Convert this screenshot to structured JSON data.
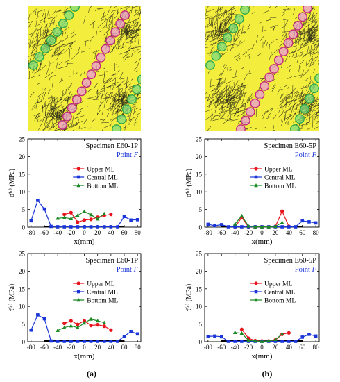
{
  "panel_labels": [
    "(a)",
    "(b)"
  ],
  "specimen_images": [
    {
      "columns": [
        {
          "ring_color": "#2ea84a",
          "fill_color": "#7fdc7f"
        },
        {
          "ring_color": "#c0287c",
          "fill_color": "#e89ad6"
        },
        {
          "ring_color": "#2ea84a",
          "fill_color": "#7fdc7f"
        }
      ]
    },
    {
      "columns": [
        {
          "ring_color": "#2ea84a",
          "fill_color": "#7fdc7f"
        },
        {
          "ring_color": "#c0287c",
          "fill_color": "#e89ad6"
        },
        {
          "ring_color": "#2ea84a",
          "fill_color": "#7fdc7f"
        }
      ]
    }
  ],
  "colors": {
    "background_yellow": "#f3ee3e",
    "crack_black": "#141414",
    "upper": "#e8141c",
    "central": "#1a36d8",
    "bottom": "#1b8a24",
    "point_label": "#1a36d8"
  },
  "chart_data": [
    {
      "type": "line",
      "specimen": "Specimen E60-1P",
      "point_prefix": "Point ",
      "point_letter": "F",
      "ylabel": "σ̄⁽ᶜ⁾ (MPa)",
      "xlabel": "x(mm)",
      "xlim": [
        -85,
        85
      ],
      "ylim": [
        0,
        25
      ],
      "xticks": [
        -80,
        -60,
        -40,
        -20,
        0,
        20,
        40,
        60,
        80
      ],
      "yticks": [
        0,
        5,
        10,
        15,
        20,
        25
      ],
      "legend_position": "center",
      "series": [
        {
          "name": "Upper ML",
          "color": "#e8141c",
          "marker": "circle",
          "x": [
            -30,
            -20,
            -10,
            0,
            10,
            20,
            30,
            40
          ],
          "y": [
            3.6,
            4.1,
            1.4,
            2.0,
            2.2,
            2.8,
            3.3,
            3.6
          ]
        },
        {
          "name": "Central ML",
          "color": "#1a36d8",
          "marker": "square",
          "x": [
            -80,
            -70,
            -60,
            -50,
            -40,
            -30,
            -20,
            -10,
            0,
            10,
            20,
            30,
            40,
            50,
            60,
            70,
            80
          ],
          "y": [
            1.8,
            7.6,
            5.1,
            0.2,
            0.1,
            0.1,
            0.1,
            0.1,
            0.1,
            0.1,
            0.1,
            0.1,
            0.1,
            0.1,
            3.0,
            2.0,
            2.1
          ]
        },
        {
          "name": "Bottom ML",
          "color": "#1b8a24",
          "marker": "triangle",
          "x": [
            -40,
            -30,
            -20,
            -10,
            0,
            10,
            20,
            30
          ],
          "y": [
            2.5,
            2.7,
            2.4,
            3.3,
            4.4,
            3.5,
            2.3,
            3.8
          ]
        }
      ]
    },
    {
      "type": "line",
      "specimen": "Specimen E60-5P",
      "point_prefix": "Point ",
      "point_letter": "F",
      "ylabel": "σ̄⁽ᶜ⁾ (MPa)",
      "xlabel": "x(mm)",
      "xlim": [
        -85,
        85
      ],
      "ylim": [
        0,
        25
      ],
      "xticks": [
        -80,
        -60,
        -40,
        -20,
        0,
        20,
        40,
        60,
        80
      ],
      "yticks": [
        0,
        5,
        10,
        15,
        20,
        25
      ],
      "legend_position": "center",
      "series": [
        {
          "name": "Upper ML",
          "color": "#e8141c",
          "marker": "circle",
          "x": [
            -40,
            -30,
            -20,
            -10,
            0,
            10,
            20,
            30,
            40
          ],
          "y": [
            0.1,
            2.7,
            0.1,
            0.1,
            0.1,
            0.1,
            0.2,
            4.5,
            0.2
          ]
        },
        {
          "name": "Central ML",
          "color": "#1a36d8",
          "marker": "square",
          "x": [
            -80,
            -70,
            -60,
            -50,
            -40,
            -30,
            -20,
            -10,
            0,
            10,
            20,
            30,
            40,
            50,
            60,
            70,
            80
          ],
          "y": [
            0.8,
            0.4,
            0.7,
            0.1,
            0.1,
            0.1,
            0.1,
            0.1,
            0.1,
            0.1,
            0.1,
            0.1,
            0.1,
            0.1,
            1.8,
            1.5,
            1.2
          ]
        },
        {
          "name": "Bottom ML",
          "color": "#1b8a24",
          "marker": "triangle",
          "x": [
            -40,
            -30,
            -20,
            -10,
            0,
            10,
            20,
            30
          ],
          "y": [
            0.9,
            3.2,
            0.3,
            0.1,
            0.1,
            0.1,
            0.2,
            1.3
          ]
        }
      ]
    },
    {
      "type": "line",
      "specimen": "Specimen E60-1P",
      "point_prefix": "Point ",
      "point_letter": "F",
      "ylabel": "τ̄⁽ᶜ⁾ (MPa)",
      "xlabel": "x(mm)",
      "xlim": [
        -85,
        85
      ],
      "ylim": [
        0,
        25
      ],
      "xticks": [
        -80,
        -60,
        -40,
        -20,
        0,
        20,
        40,
        60,
        80
      ],
      "yticks": [
        0,
        5,
        10,
        15,
        20,
        25
      ],
      "legend_position": "center",
      "series": [
        {
          "name": "Upper ML",
          "color": "#e8141c",
          "marker": "circle",
          "x": [
            -30,
            -20,
            -10,
            0,
            10,
            20,
            30,
            40
          ],
          "y": [
            5.2,
            5.9,
            4.9,
            5.9,
            4.6,
            4.8,
            4.4,
            3.3
          ]
        },
        {
          "name": "Central ML",
          "color": "#1a36d8",
          "marker": "square",
          "x": [
            -80,
            -70,
            -60,
            -50,
            -40,
            -30,
            -20,
            -10,
            0,
            10,
            20,
            30,
            40,
            50,
            60,
            70,
            80
          ],
          "y": [
            3.3,
            7.6,
            6.5,
            0.2,
            0.1,
            0.1,
            0.1,
            0.1,
            0.1,
            0.1,
            0.1,
            0.1,
            0.1,
            0.1,
            1.5,
            2.9,
            2.2
          ]
        },
        {
          "name": "Bottom ML",
          "color": "#1b8a24",
          "marker": "triangle",
          "x": [
            -40,
            -30,
            -20,
            -10,
            0,
            10,
            20,
            30
          ],
          "y": [
            3.2,
            4.0,
            4.5,
            4.0,
            5.3,
            6.4,
            5.9,
            5.4
          ]
        }
      ]
    },
    {
      "type": "line",
      "specimen": "Specimen E60-5P",
      "point_prefix": "Point ",
      "point_letter": "F",
      "ylabel": "τ̄⁽ᶜ⁾ (MPa)",
      "xlabel": "x(mm)",
      "xlim": [
        -85,
        85
      ],
      "ylim": [
        0,
        25
      ],
      "xticks": [
        -80,
        -60,
        -40,
        -20,
        0,
        20,
        40,
        60,
        80
      ],
      "yticks": [
        0,
        5,
        10,
        15,
        20,
        25
      ],
      "legend_position": "center",
      "series": [
        {
          "name": "Upper ML",
          "color": "#e8141c",
          "marker": "circle",
          "x": [
            -30,
            -20,
            -10,
            0,
            10,
            20,
            30,
            40
          ],
          "y": [
            3.5,
            1.0,
            0.3,
            0.2,
            0.2,
            0.5,
            2.1,
            2.5
          ]
        },
        {
          "name": "Central ML",
          "color": "#1a36d8",
          "marker": "square",
          "x": [
            -80,
            -70,
            -60,
            -50,
            -40,
            -30,
            -20,
            -10,
            0,
            10,
            20,
            30,
            40,
            50,
            60,
            70,
            80
          ],
          "y": [
            1.5,
            1.6,
            1.4,
            0.1,
            0.1,
            0.1,
            0.1,
            0.1,
            0.1,
            0.1,
            0.1,
            0.1,
            0.1,
            0.1,
            1.3,
            2.1,
            1.6
          ]
        },
        {
          "name": "Bottom ML",
          "color": "#1b8a24",
          "marker": "triangle",
          "x": [
            -40,
            -30,
            -20,
            -10,
            0,
            10,
            20,
            30
          ],
          "y": [
            2.6,
            2.4,
            0.4,
            0.2,
            0.1,
            0.2,
            0.6,
            2.2
          ]
        }
      ]
    }
  ]
}
